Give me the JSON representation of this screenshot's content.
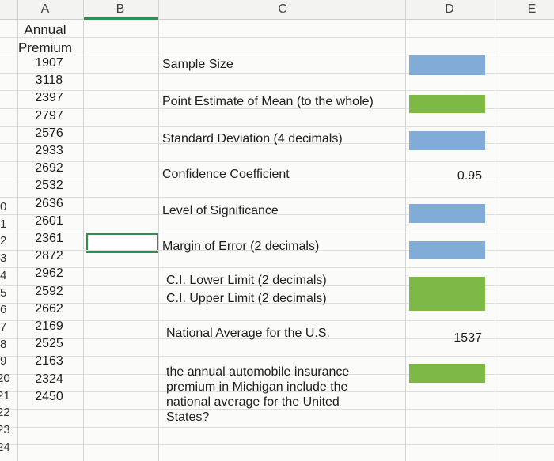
{
  "columns": [
    "A",
    "B",
    "C",
    "D",
    "E"
  ],
  "row_numbers": [
    "0",
    "1",
    "2",
    "3",
    "4",
    "5",
    "6",
    "7",
    "8",
    "9",
    "20",
    "21",
    "22",
    "23",
    "24"
  ],
  "premium": {
    "header": "Annual Premium",
    "values": [
      1907,
      3118,
      2397,
      2797,
      2576,
      2933,
      2692,
      2532,
      2636,
      2601,
      2361,
      2872,
      2962,
      2592,
      2662,
      2169,
      2525,
      2163,
      2324,
      2450
    ]
  },
  "fields": [
    {
      "label": "Sample Size"
    },
    {
      "label": "Point Estimate of Mean (to the whole)"
    },
    {
      "label": "Standard Deviation (4 decimals)"
    },
    {
      "label": "Confidence Coefficient",
      "value": 0.95
    },
    {
      "label": "Level of Significance"
    },
    {
      "label": "Margin of Error (2 decimals)"
    },
    {
      "label": "C.I. Lower Limit (2 decimals)"
    },
    {
      "label": "C.I. Upper Limit (2 decimals)"
    },
    {
      "label": "National Average for the U.S.",
      "value": 1537
    },
    {
      "label": "the annual automobile insurance premium in Michigan include the national average for the United States?"
    }
  ]
}
